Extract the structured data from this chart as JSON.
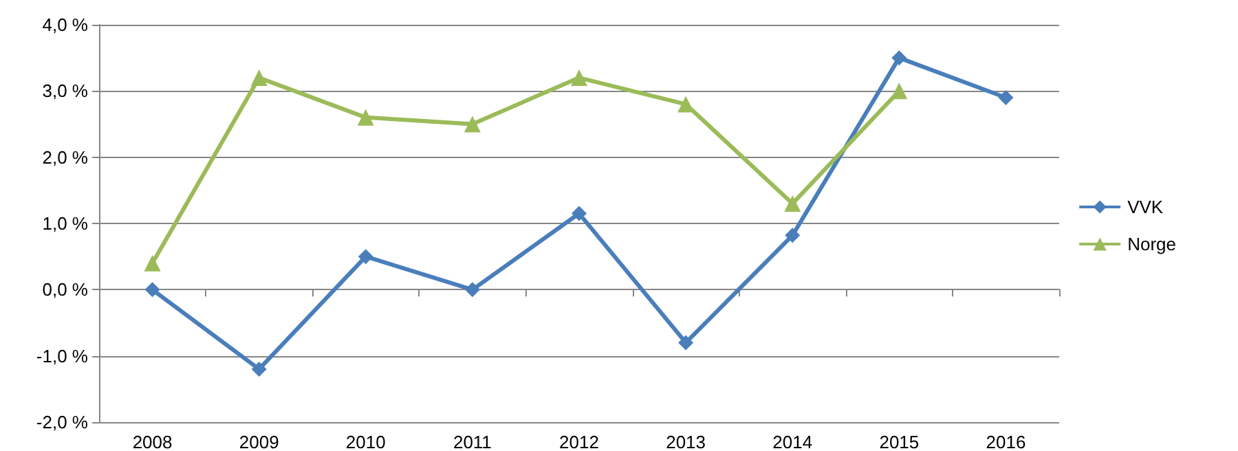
{
  "chart_data": {
    "type": "line",
    "categories": [
      "2008",
      "2009",
      "2010",
      "2011",
      "2012",
      "2013",
      "2014",
      "2015",
      "2016"
    ],
    "series": [
      {
        "name": "VVK",
        "color": "#4a7ebb",
        "marker": "diamond",
        "values": [
          0.0,
          -1.2,
          0.5,
          0.0,
          1.15,
          -0.8,
          0.82,
          3.5,
          2.9
        ]
      },
      {
        "name": "Norge",
        "color": "#9bbb59",
        "marker": "triangle",
        "values": [
          0.4,
          3.2,
          2.6,
          2.5,
          3.2,
          2.8,
          1.3,
          3.0,
          null
        ]
      }
    ],
    "ylim": [
      -2,
      4
    ],
    "yticks": [
      {
        "value": -2,
        "label": "-2,0 %"
      },
      {
        "value": -1,
        "label": "-1,0 %"
      },
      {
        "value": 0,
        "label": "0,0 %"
      },
      {
        "value": 1,
        "label": "1,0 %"
      },
      {
        "value": 2,
        "label": "2,0 %"
      },
      {
        "value": 3,
        "label": "3,0 %"
      },
      {
        "value": 4,
        "label": "4,0 %"
      }
    ],
    "grid": "y",
    "legend": "right",
    "line_style": "solid"
  }
}
